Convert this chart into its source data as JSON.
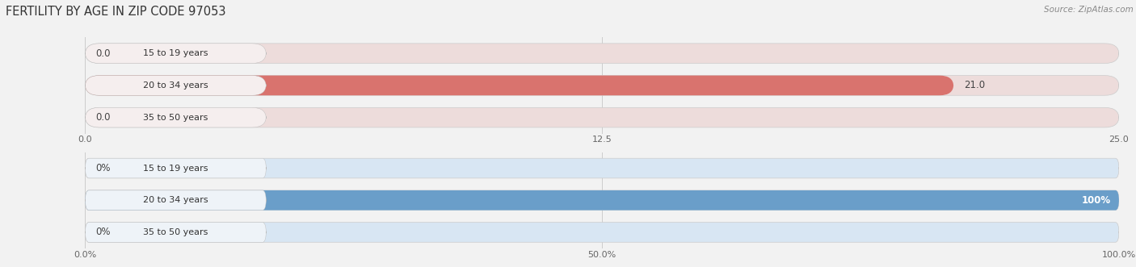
{
  "title": "FERTILITY BY AGE IN ZIP CODE 97053",
  "source": "Source: ZipAtlas.com",
  "background_color": "#f2f2f2",
  "top_chart": {
    "categories": [
      "15 to 19 years",
      "20 to 34 years",
      "35 to 50 years"
    ],
    "values": [
      0.0,
      21.0,
      0.0
    ],
    "bar_color": "#d9736e",
    "bar_bg_color": "#eddcdb",
    "label_pill_color": "#f5eeee",
    "xmax": 25.0,
    "xticks": [
      0.0,
      12.5,
      25.0
    ],
    "is_percent": false
  },
  "bottom_chart": {
    "categories": [
      "15 to 19 years",
      "20 to 34 years",
      "35 to 50 years"
    ],
    "values": [
      0.0,
      100.0,
      0.0
    ],
    "bar_color": "#6a9ec9",
    "bar_bg_color": "#d8e6f3",
    "label_pill_color": "#eef3f8",
    "xmax": 100.0,
    "xticks": [
      0.0,
      50.0,
      100.0
    ],
    "is_percent": true
  },
  "bar_height": 0.62,
  "label_fontsize": 8.5,
  "category_fontsize": 8.0,
  "title_fontsize": 10.5,
  "source_fontsize": 7.5,
  "tick_fontsize": 8.0
}
